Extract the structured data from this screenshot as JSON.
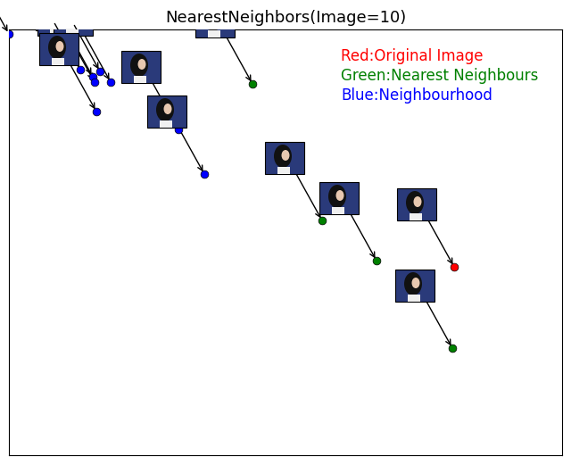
{
  "chart_data": {
    "type": "scatter",
    "title": "NearestNeighbors(Image=10)",
    "xlim": [
      0,
      620
    ],
    "ylim": [
      0,
      477
    ],
    "tick_labels": false,
    "marker": "o",
    "series": [
      {
        "name": "Red:Original Image",
        "color": "#ff0000",
        "x": [
          499
        ],
        "y": [
          211
        ]
      },
      {
        "name": "Green:Nearest Neighbours",
        "color": "#008000",
        "x": [
          273,
          351,
          412,
          497
        ],
        "y": [
          416,
          263,
          218,
          120
        ]
      },
      {
        "name": "Blue:Neighbourhood",
        "color": "#0000ff",
        "x": [
          0,
          80,
          94,
          96,
          102,
          114,
          98,
          190,
          219
        ],
        "y": [
          472,
          432,
          424,
          418,
          430,
          418,
          385,
          365,
          315
        ]
      }
    ]
  }
}
